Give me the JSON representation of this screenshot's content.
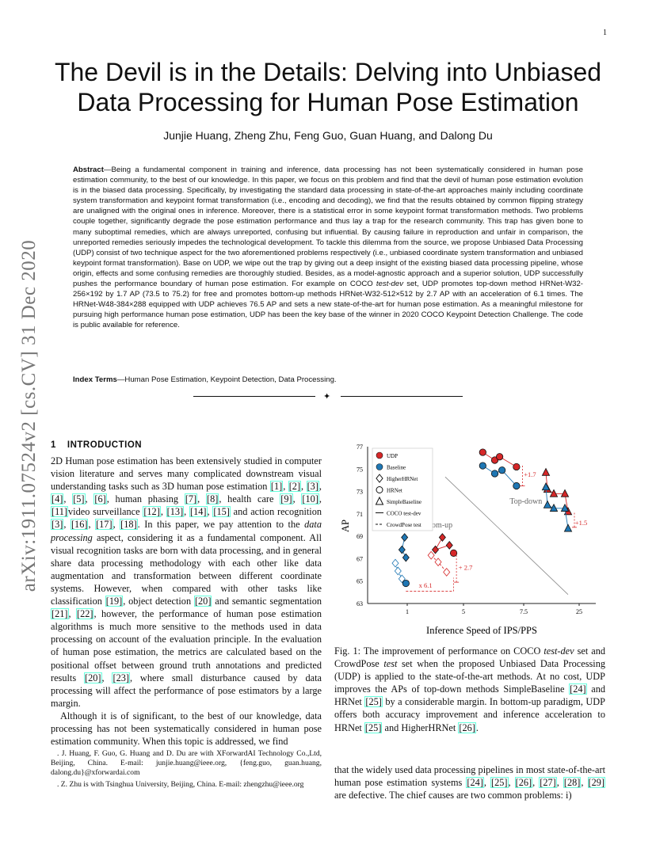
{
  "page_number": "1",
  "arxiv_stamp": "arXiv:1911.07524v2  [cs.CV]  31 Dec 2020",
  "title_line1": "The Devil is in the Details: Delving into Unbiased",
  "title_line2": "Data Processing for Human Pose Estimation",
  "authors": "Junjie Huang, Zheng Zhu, Feng Guo, Guan Huang, and Dalong Du",
  "abstract": {
    "label": "Abstract",
    "text1": "—Being a fundamental component in training and inference, data processing has not been systematically considered in human pose estimation community, to the best of our knowledge. In this paper, we focus on this problem and find that the devil of human pose estimation evolution is in the biased data processing. Specifically, by investigating the standard data processing in state-of-the-art approaches mainly including coordinate system transformation and keypoint format transformation (i.e., encoding and decoding), we find that the results obtained by common flipping strategy are unaligned with the original ones in inference. Moreover, there is a statistical error in some keypoint format transformation methods. Two problems couple together, significantly degrade the pose estimation performance and thus lay a trap for the research community. This trap has given bone to many suboptimal remedies, which are always unreported, confusing but influential. By causing failure in reproduction and unfair in comparison, the unreported remedies seriously impedes the technological development. To tackle this dilemma from the source, we propose Unbiased Data Processing (UDP) consist of two technique aspect for the two aforementioned problems respectively (i.e., unbiased coordinate system transformation and unbiased keypoint format transformation). Base on UDP, we wipe out the trap by giving out a deep insight of the existing biased data processing pipeline, whose origin, effects and some confusing remedies are thoroughly studied. Besides, as a model-agnostic approach and a superior solution, UDP successfully pushes the performance boundary of human pose estimation. For example on COCO ",
    "test_dev": "test-dev",
    "text2": " set, UDP promotes top-down method HRNet-W32-256×192 by 1.7 AP (73.5 to 75.2) for free and promotes bottom-up methods HRNet-W32-512×512 by 2.7 AP with an acceleration of 6.1 times. The HRNet-W48-384×288 equipped with UDP achieves 76.5 AP and sets a new state-of-the-art for human pose estimation. As a meaningful milestone for pursuing high performance human pose estimation, UDP has been the key base of the winner in 2020 COCO Keypoint Detection Challenge. The code is public available for reference."
  },
  "index_terms": {
    "label": "Index Terms",
    "text": "—Human Pose Estimation, Keypoint Detection, Data Processing."
  },
  "divider_symbol": "✦",
  "section": {
    "number": "1",
    "title": "Introduction"
  },
  "intro": {
    "p1_a": "2D Human pose estimation has been extensively studied in computer vision literature and serves many complicated downstream visual understanding tasks such as 3D human pose estimation ",
    "p1_b": ", human phasing ",
    "p1_c": ", health care ",
    "p1_d": " and action recognition ",
    "p1_e": ". In this paper, we pay attention to the ",
    "p1_em": "data processing",
    "p1_f": " aspect, considering it as a fundamental component. All visual recognition tasks are born with data processing, and in general share data processing methodology with each other like data augmentation and transformation between different coordinate systems. However, when compared with other tasks like classification ",
    "p1_g": ", object detection ",
    "p1_h": " and semantic segmentation ",
    "p1_i": ", however, the performance of human pose estimation algorithms is much more sensitive to the methods used in data processing on account of the evaluation principle. In the evaluation of human pose estimation, the metrics are calculated based on the positional offset between ground truth annotations and predicted results ",
    "p1_j": ", where small disturbance caused by data processing will affect the performance of pose estimators by a large margin.",
    "p2": "Although it is of significant, to the best of our knowledge, data processing has not been systematically considered in human pose estimation community. When this topic is addressed, we find",
    "cites_3d": [
      "[1]",
      "[2]",
      "[3]",
      "[4]",
      "[5]",
      "[6]"
    ],
    "cites_phasing": [
      "[7]",
      "[8]"
    ],
    "cites_health": [
      "[9]",
      "[10]",
      "[11]"
    ],
    "cites_video_text": "video surveillance ",
    "cites_video": [
      "[12]",
      "[13]",
      "[14]",
      "[15]"
    ],
    "cites_action": [
      "[3]",
      "[16]",
      "[17]",
      "[18]"
    ],
    "cites_cls": [
      "[19]"
    ],
    "cites_det": [
      "[20]"
    ],
    "cites_seg": [
      "[21]",
      "[22]"
    ],
    "cites_eval": [
      "[20]",
      "[23]"
    ]
  },
  "footnotes": {
    "f1": "J. Huang, F. Guo, G. Huang and D. Du are with XForwardAI Technology Co.,Ltd, Beijing, China. E-mail: junjie.huang@ieee.org, {feng.guo, guan.huang, dalong.du}@xforwardai.com",
    "f2": "Z. Zhu is with Tsinghua University, Beijing, China. E-mail: zhengzhu@ieee.org"
  },
  "caption": {
    "a": "Fig. 1: The improvement of performance on COCO ",
    "em1": "test-dev",
    "b": " set and CrowdPose ",
    "em2": "test",
    "c": " set when the proposed Unbiased Data Processing (UDP) is applied to the state-of-the-art methods. At no cost, UDP improves the APs of top-down methods SimpleBaseline ",
    "cite1": "[24]",
    "d": " and HRNet ",
    "cite2": "[25]",
    "e": " by a considerable margin. In bottom-up paradigm, UDP offers both accuracy improvement and inference acceleration to HRNet ",
    "cite3": "[25]",
    "f": " and HigherHRNet ",
    "cite4": "[26]",
    "g": "."
  },
  "right_text": {
    "a": "that the widely used data processing pipelines in most state-of-the-art human pose estimation systems ",
    "cites": [
      "[24]",
      "[25]",
      "[26]",
      "[27]",
      "[28]",
      "[29]"
    ],
    "b": " are defective. The chief causes are two common problems: i)"
  },
  "chart_data": {
    "type": "scatter",
    "xlabel": "Inference Speed of IPS/PPS",
    "ylabel": "AP",
    "x_ticks": [
      "1",
      "5",
      "7.5",
      "25"
    ],
    "y_ticks": [
      63,
      65,
      67,
      69,
      71,
      73,
      75,
      77
    ],
    "ylim": [
      63,
      77
    ],
    "legend": [
      "UDP",
      "Baseline",
      "HigherHRNet",
      "HRNet",
      "SimpleBaseline",
      "COCO test-dev",
      "CrowdPose test"
    ],
    "legend_position": "top-left",
    "colors": {
      "udp": "#d62728",
      "baseline": "#1f77b4",
      "annotation": "#d62728",
      "divider": "#888888"
    },
    "region_labels": [
      "Top-down",
      "Bottom-up"
    ],
    "annotations": [
      "+1.7",
      "+1.5",
      "+ 2.7",
      "x 6.1"
    ],
    "series": [
      {
        "name": "UDP",
        "marker": "circle",
        "dataset": "COCO test-dev",
        "points": [
          [
            5.8,
            76.5
          ],
          [
            6.3,
            75.8
          ],
          [
            6.5,
            76.1
          ],
          [
            7.2,
            75.2
          ]
        ]
      },
      {
        "name": "Baseline",
        "marker": "circle",
        "dataset": "COCO test-dev",
        "points": [
          [
            5.8,
            75.3
          ],
          [
            6.3,
            74.6
          ],
          [
            6.6,
            74.9
          ],
          [
            7.2,
            73.5
          ]
        ]
      },
      {
        "name": "UDP",
        "marker": "triangle",
        "dataset": "COCO test-dev",
        "points": [
          [
            14.5,
            74.7
          ],
          [
            15.0,
            73.2
          ],
          [
            17.0,
            72.8
          ],
          [
            20.5,
            72.8
          ],
          [
            21.5,
            71.2
          ]
        ]
      },
      {
        "name": "Baseline",
        "marker": "triangle",
        "dataset": "COCO test-dev",
        "points": [
          [
            14.5,
            73.4
          ],
          [
            15.0,
            71.8
          ],
          [
            17.0,
            71.5
          ],
          [
            20.5,
            71.5
          ],
          [
            21.5,
            69.7
          ]
        ]
      },
      {
        "name": "UDP",
        "marker": "diamond",
        "dataset": "COCO test-dev",
        "points": [
          [
            3.5,
            68.9
          ],
          [
            3.0,
            67.8
          ],
          [
            4.0,
            68.2
          ]
        ]
      },
      {
        "name": "UDP",
        "marker": "diamond",
        "dataset": "CrowdPose test",
        "points": [
          [
            2.7,
            67.3
          ],
          [
            3.2,
            66.7
          ],
          [
            3.8,
            65.8
          ]
        ]
      },
      {
        "name": "Baseline",
        "marker": "diamond",
        "dataset": "COCO test-dev",
        "points": [
          [
            0.8,
            68.9
          ],
          [
            0.6,
            67.8
          ],
          [
            0.9,
            67.1
          ]
        ]
      },
      {
        "name": "Baseline",
        "marker": "diamond",
        "dataset": "CrowdPose test",
        "points": [
          [
            0.1,
            66.6
          ],
          [
            0.3,
            65.9
          ],
          [
            0.6,
            65.2
          ]
        ]
      },
      {
        "name": "UDP",
        "marker": "circle",
        "dataset": "COCO test-dev",
        "points": [
          [
            4.3,
            67.5
          ]
        ]
      },
      {
        "name": "Baseline",
        "marker": "circle",
        "dataset": "COCO test-dev",
        "points": [
          [
            0.9,
            64.8
          ]
        ]
      }
    ]
  }
}
